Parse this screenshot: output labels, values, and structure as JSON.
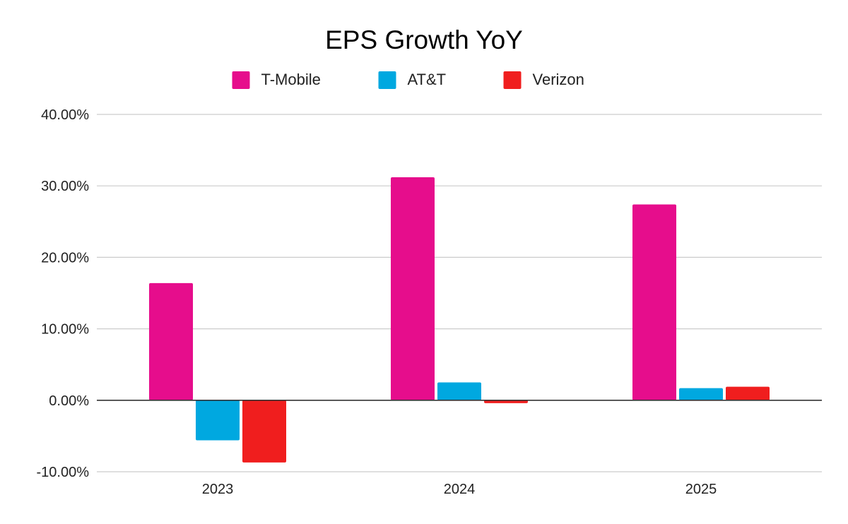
{
  "chart_data": {
    "type": "bar",
    "title": "EPS Growth YoY",
    "xlabel": "",
    "ylabel": "",
    "categories": [
      "2023",
      "2024",
      "2025"
    ],
    "series": [
      {
        "name": "T-Mobile",
        "color": "#e60d8c",
        "values": [
          16.4,
          31.2,
          27.4
        ]
      },
      {
        "name": "AT&T",
        "color": "#00a8e0",
        "values": [
          -5.6,
          2.5,
          1.7
        ]
      },
      {
        "name": "Verizon",
        "color": "#f01e1e",
        "values": [
          -8.7,
          -0.4,
          1.9
        ]
      }
    ],
    "ylim": [
      -10,
      40
    ],
    "yticks": [
      40,
      30,
      20,
      10,
      0,
      -10
    ],
    "ytick_labels": [
      "40.00%",
      "30.00%",
      "20.00%",
      "10.00%",
      "0.00%",
      "-10.00%"
    ],
    "grid": true,
    "legend_position": "top-center"
  }
}
